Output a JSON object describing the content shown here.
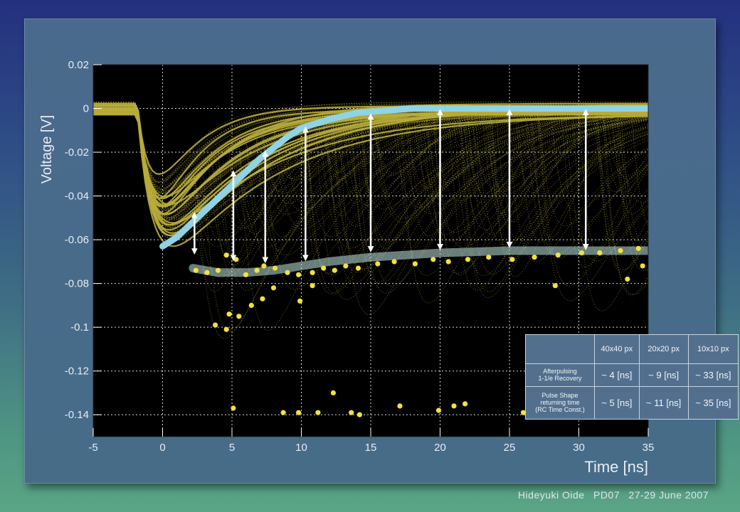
{
  "chart_data": {
    "type": "line",
    "xlabel": "Time [ns]",
    "ylabel": "Voltage [V]",
    "xlim": [
      -5,
      35
    ],
    "ylim": [
      -0.15,
      0.02
    ],
    "x_ticks": [
      "-5",
      "0",
      "5",
      "10",
      "15",
      "20",
      "25",
      "30",
      "35"
    ],
    "y_ticks": [
      "0.02",
      "0",
      "-0.02",
      "-0.04",
      "-0.06",
      "-0.08",
      "-0.1",
      "-0.12",
      "-0.14"
    ],
    "grid": true,
    "colors": {
      "background": "#000000",
      "traces": "#b8ad3c",
      "recovery_curve": "#8fd3e6",
      "dots": "#f2e23a",
      "arrows": "#ffffff"
    },
    "series": [
      {
        "x": [
          0,
          1,
          2,
          3,
          4,
          5,
          6,
          7,
          8,
          9,
          10,
          12,
          14,
          16,
          18,
          20,
          25,
          30,
          35
        ],
        "y": [
          -0.063,
          -0.059,
          -0.053,
          -0.047,
          -0.041,
          -0.035,
          -0.029,
          -0.023,
          -0.018,
          -0.013,
          -0.009,
          -0.005,
          -0.002,
          -0.001,
          0.0,
          0.0,
          0.0,
          0.0,
          0.0
        ]
      },
      {
        "x": [
          2.2,
          4,
          6,
          8,
          10,
          12,
          15,
          20,
          25,
          30,
          35
        ],
        "y": [
          -0.073,
          -0.075,
          -0.075,
          -0.074,
          -0.072,
          -0.07,
          -0.068,
          -0.066,
          -0.065,
          -0.065,
          -0.065
        ]
      }
    ],
    "arrows": [
      {
        "x": 2.3,
        "y_top": -0.048,
        "y_bottom": -0.066
      },
      {
        "x": 5.1,
        "y_top": -0.029,
        "y_bottom": -0.069
      },
      {
        "x": 7.4,
        "y_top": -0.02,
        "y_bottom": -0.07
      },
      {
        "x": 10.3,
        "y_top": -0.009,
        "y_bottom": -0.069
      },
      {
        "x": 15.0,
        "y_top": -0.003,
        "y_bottom": -0.065
      },
      {
        "x": 20.0,
        "y_top": -0.001,
        "y_bottom": -0.064
      },
      {
        "x": 25.0,
        "y_top": -0.001,
        "y_bottom": -0.063
      },
      {
        "x": 30.5,
        "y_top": -0.001,
        "y_bottom": -0.064
      }
    ],
    "dots": [
      [
        2.4,
        -0.074
      ],
      [
        3.2,
        -0.075
      ],
      [
        4.0,
        -0.074
      ],
      [
        4.6,
        -0.067
      ],
      [
        5.3,
        -0.069
      ],
      [
        6.0,
        -0.076
      ],
      [
        6.8,
        -0.074
      ],
      [
        7.3,
        -0.072
      ],
      [
        8.1,
        -0.073
      ],
      [
        9.0,
        -0.075
      ],
      [
        9.8,
        -0.076
      ],
      [
        10.8,
        -0.075
      ],
      [
        11.6,
        -0.073
      ],
      [
        12.4,
        -0.074
      ],
      [
        13.2,
        -0.072
      ],
      [
        14.1,
        -0.073
      ],
      [
        15.5,
        -0.071
      ],
      [
        16.7,
        -0.07
      ],
      [
        18.2,
        -0.071
      ],
      [
        19.5,
        -0.069
      ],
      [
        20.6,
        -0.07
      ],
      [
        22.0,
        -0.069
      ],
      [
        23.5,
        -0.068
      ],
      [
        25.2,
        -0.069
      ],
      [
        26.8,
        -0.068
      ],
      [
        28.5,
        -0.067
      ],
      [
        30.2,
        -0.066
      ],
      [
        31.5,
        -0.066
      ],
      [
        33.0,
        -0.065
      ],
      [
        34.3,
        -0.064
      ],
      [
        3.8,
        -0.099
      ],
      [
        4.6,
        -0.101
      ],
      [
        4.8,
        -0.094
      ],
      [
        5.5,
        -0.095
      ],
      [
        6.4,
        -0.09
      ],
      [
        7.2,
        -0.087
      ],
      [
        8.0,
        -0.082
      ],
      [
        9.9,
        -0.088
      ],
      [
        5.1,
        -0.137
      ],
      [
        8.7,
        -0.139
      ],
      [
        9.8,
        -0.139
      ],
      [
        11.2,
        -0.139
      ],
      [
        12.3,
        -0.13
      ],
      [
        13.6,
        -0.139
      ],
      [
        14.2,
        -0.14
      ],
      [
        17.1,
        -0.136
      ],
      [
        19.9,
        -0.138
      ],
      [
        21.0,
        -0.136
      ],
      [
        21.8,
        -0.135
      ],
      [
        26.0,
        -0.139
      ],
      [
        28.3,
        -0.081
      ],
      [
        33.5,
        -0.078
      ],
      [
        34.6,
        -0.072
      ],
      [
        10.8,
        -0.081
      ]
    ]
  },
  "table": {
    "columns": [
      "",
      "40x40 px",
      "20x20 px",
      "10x10 px"
    ],
    "rows": [
      {
        "label": [
          "Afterpulsing",
          "1-1/e Recovery"
        ],
        "values": [
          "~ 4 [ns]",
          "~ 9 [ns]",
          "~ 33 [ns]"
        ]
      },
      {
        "label": [
          "Pulse Shape",
          "returning time",
          "(RC Time Const.)"
        ],
        "values": [
          "~ 5 [ns]",
          "~ 11 [ns]",
          "~ 35 [ns]"
        ]
      }
    ]
  },
  "footer": {
    "author": "Hideyuki Oide",
    "event": "PD07",
    "date": "27-29 June 2007"
  }
}
